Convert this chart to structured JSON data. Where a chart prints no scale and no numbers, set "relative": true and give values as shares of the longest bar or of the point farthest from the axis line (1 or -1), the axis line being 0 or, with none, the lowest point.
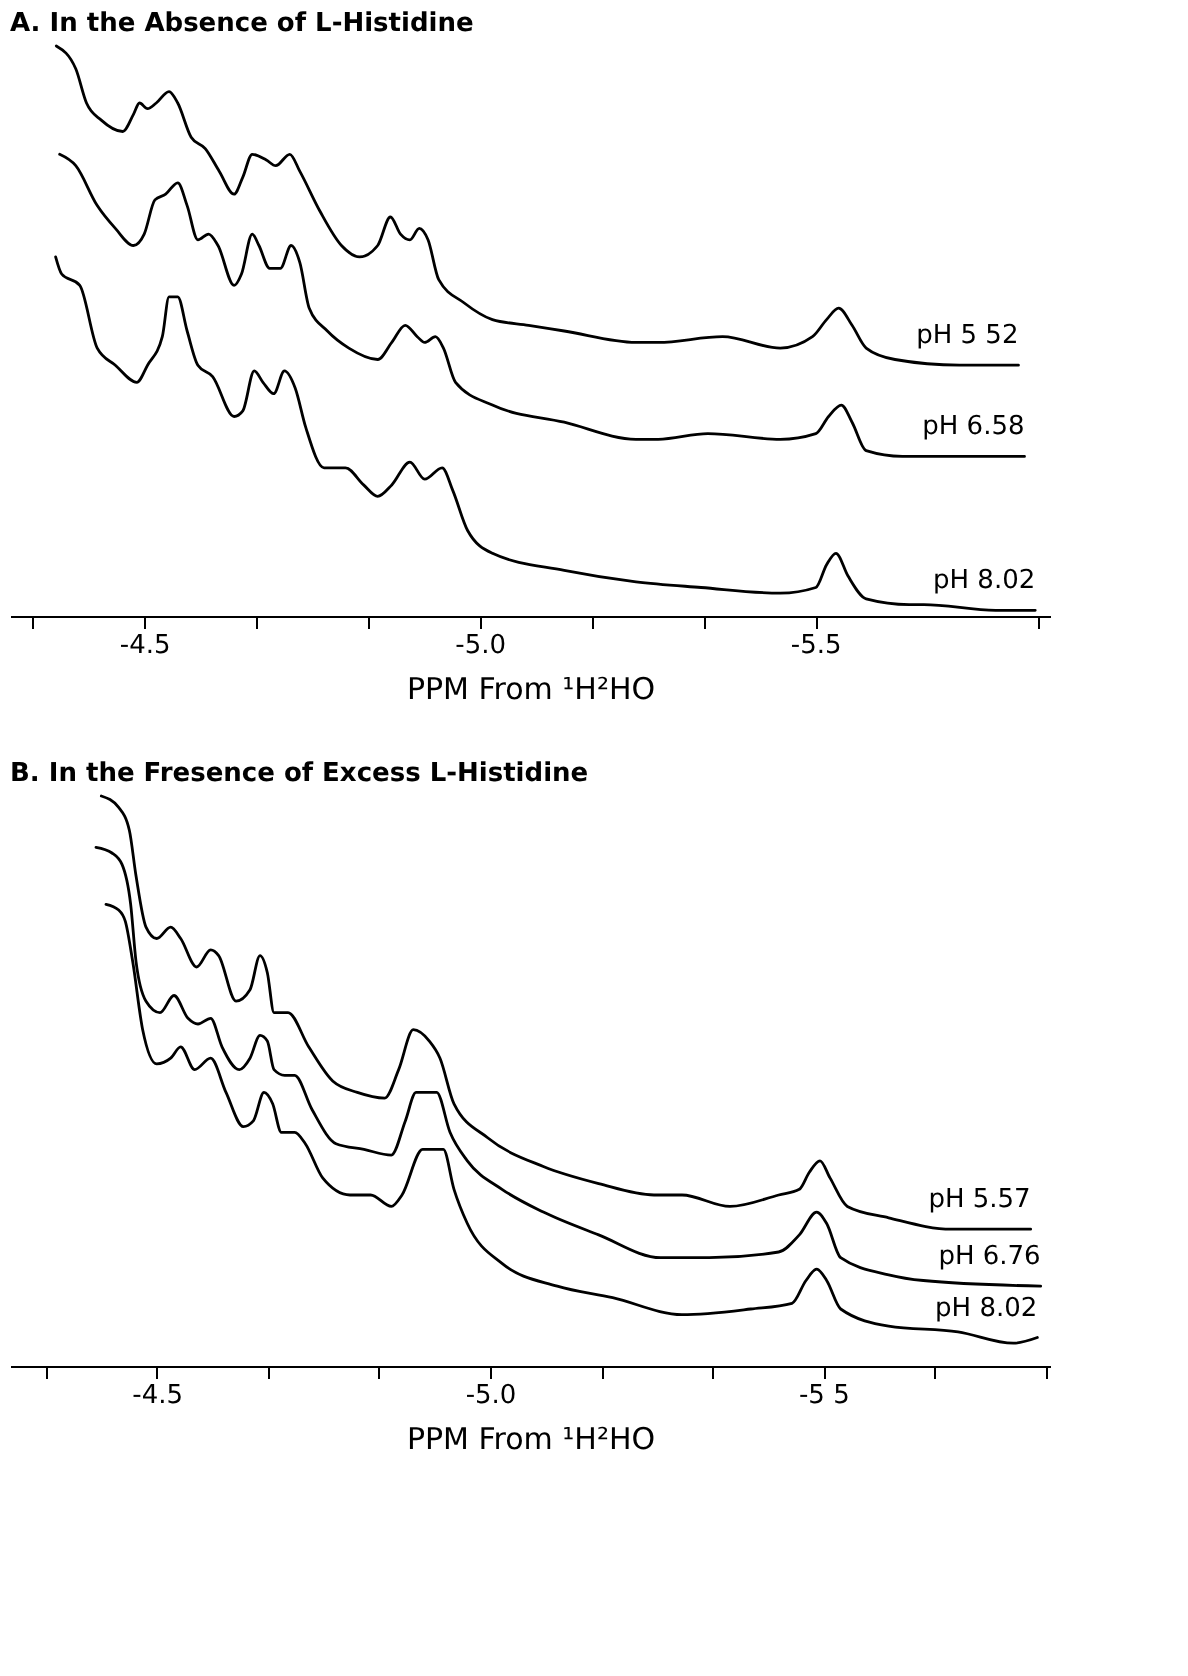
{
  "chart_data": [
    {
      "type": "line",
      "title": "A. In the Absence of L-Histidine",
      "xlabel": "PPM From ¹H²HO",
      "relative": true,
      "xlim": [
        -4.3,
        -5.85
      ],
      "xticks": [
        {
          "value": -4.333,
          "label": null
        },
        {
          "value": -4.5,
          "label": "-4.5"
        },
        {
          "value": -4.667,
          "label": null
        },
        {
          "value": -4.833,
          "label": null
        },
        {
          "value": -5.0,
          "label": "-5.0"
        },
        {
          "value": -5.167,
          "label": null
        },
        {
          "value": -5.333,
          "label": null
        },
        {
          "value": -5.5,
          "label": "-5.5"
        },
        {
          "value": -5.833,
          "label": null
        }
      ],
      "series": [
        {
          "name": "pH 5 52",
          "color": "#000000",
          "x": [
            -4.369,
            -4.398,
            -4.414,
            -4.436,
            -4.468,
            -4.484,
            -4.493,
            -4.505,
            -4.518,
            -4.537,
            -4.55,
            -4.57,
            -4.591,
            -4.612,
            -4.634,
            -4.647,
            -4.661,
            -4.682,
            -4.696,
            -4.717,
            -4.732,
            -4.762,
            -4.794,
            -4.821,
            -4.848,
            -4.867,
            -4.882,
            -4.896,
            -4.91,
            -4.923,
            -4.939,
            -4.976,
            -5.019,
            -5.073,
            -5.126,
            -5.233,
            -5.266,
            -5.362,
            -5.448,
            -5.496,
            -5.517,
            -5.535,
            -5.555,
            -5.576,
            -5.619,
            -5.715,
            -5.803
          ],
          "values": [
            1.0,
            0.96,
            0.9,
            0.87,
            0.85,
            0.88,
            0.9,
            0.89,
            0.9,
            0.92,
            0.9,
            0.84,
            0.82,
            0.78,
            0.74,
            0.77,
            0.81,
            0.8,
            0.79,
            0.81,
            0.78,
            0.71,
            0.65,
            0.63,
            0.65,
            0.7,
            0.67,
            0.66,
            0.68,
            0.66,
            0.59,
            0.55,
            0.52,
            0.51,
            0.5,
            0.48,
            0.48,
            0.49,
            0.47,
            0.49,
            0.52,
            0.54,
            0.51,
            0.47,
            0.45,
            0.44,
            0.44
          ]
        },
        {
          "name": "pH 6.58",
          "color": "#000000",
          "x": [
            -4.374,
            -4.398,
            -4.43,
            -4.457,
            -4.484,
            -4.5,
            -4.516,
            -4.532,
            -4.55,
            -4.564,
            -4.58,
            -4.596,
            -4.61,
            -4.634,
            -4.645,
            -4.661,
            -4.671,
            -4.687,
            -4.703,
            -4.719,
            -4.732,
            -4.746,
            -4.773,
            -4.805,
            -4.848,
            -4.869,
            -4.889,
            -4.907,
            -4.918,
            -4.934,
            -4.946,
            -4.964,
            -5.019,
            -5.126,
            -5.233,
            -5.266,
            -5.34,
            -5.448,
            -5.501,
            -5.52,
            -5.539,
            -5.555,
            -5.576,
            -5.63,
            -5.662,
            -5.812
          ],
          "values": [
            0.81,
            0.79,
            0.72,
            0.68,
            0.65,
            0.67,
            0.73,
            0.74,
            0.76,
            0.72,
            0.66,
            0.67,
            0.65,
            0.58,
            0.6,
            0.67,
            0.65,
            0.61,
            0.61,
            0.65,
            0.62,
            0.54,
            0.5,
            0.47,
            0.45,
            0.48,
            0.51,
            0.49,
            0.48,
            0.49,
            0.47,
            0.41,
            0.37,
            0.34,
            0.31,
            0.31,
            0.32,
            0.31,
            0.32,
            0.35,
            0.37,
            0.34,
            0.29,
            0.28,
            0.28,
            0.28
          ]
        },
        {
          "name": "pH 8.02",
          "color": "#000000",
          "x": [
            -4.368,
            -4.377,
            -4.404,
            -4.43,
            -4.457,
            -4.489,
            -4.505,
            -4.527,
            -4.537,
            -4.55,
            -4.564,
            -4.58,
            -4.602,
            -4.634,
            -4.647,
            -4.664,
            -4.677,
            -4.693,
            -4.709,
            -4.725,
            -4.741,
            -4.768,
            -4.8,
            -4.827,
            -4.848,
            -4.869,
            -4.896,
            -4.918,
            -4.944,
            -4.96,
            -4.982,
            -5.019,
            -5.126,
            -5.233,
            -5.33,
            -5.448,
            -5.501,
            -5.517,
            -5.531,
            -5.549,
            -5.576,
            -5.64,
            -5.662,
            -5.769,
            -5.828
          ],
          "values": [
            0.63,
            0.6,
            0.58,
            0.47,
            0.44,
            0.41,
            0.44,
            0.49,
            0.56,
            0.56,
            0.5,
            0.44,
            0.42,
            0.35,
            0.36,
            0.43,
            0.41,
            0.39,
            0.43,
            0.4,
            0.33,
            0.26,
            0.26,
            0.23,
            0.21,
            0.23,
            0.27,
            0.24,
            0.26,
            0.22,
            0.15,
            0.11,
            0.08,
            0.06,
            0.05,
            0.04,
            0.05,
            0.09,
            0.11,
            0.07,
            0.03,
            0.02,
            0.02,
            0.01,
            0.01
          ]
        }
      ]
    },
    {
      "type": "line",
      "title": "B. In the Fresence of Excess L-Histidine",
      "xlabel": "PPM From ¹H²HO",
      "relative": true,
      "xlim": [
        -4.28,
        -5.84
      ],
      "xticks": [
        {
          "value": -4.333,
          "label": null
        },
        {
          "value": -4.5,
          "label": "-4.5"
        },
        {
          "value": -4.667,
          "label": null
        },
        {
          "value": -4.833,
          "label": null
        },
        {
          "value": -5.0,
          "label": "-5.0"
        },
        {
          "value": -5.167,
          "label": null
        },
        {
          "value": -5.333,
          "label": null
        },
        {
          "value": -5.5,
          "label": "-5 5"
        },
        {
          "value": -5.667,
          "label": null
        },
        {
          "value": -5.833,
          "label": null
        }
      ],
      "series": [
        {
          "name": "pH 5.57",
          "color": "#000000",
          "x": [
            -4.417,
            -4.443,
            -4.459,
            -4.469,
            -4.484,
            -4.5,
            -4.521,
            -4.536,
            -4.56,
            -4.581,
            -4.593,
            -4.619,
            -4.64,
            -4.655,
            -4.666,
            -4.676,
            -4.697,
            -4.728,
            -4.764,
            -4.801,
            -4.842,
            -4.863,
            -4.885,
            -4.909,
            -4.925,
            -4.946,
            -4.997,
            -5.08,
            -5.163,
            -5.246,
            -5.288,
            -5.36,
            -5.433,
            -5.464,
            -5.479,
            -5.495,
            -5.51,
            -5.536,
            -5.598,
            -5.692,
            -5.811
          ],
          "values": [
            1.0,
            0.98,
            0.94,
            0.86,
            0.77,
            0.75,
            0.77,
            0.75,
            0.7,
            0.73,
            0.72,
            0.64,
            0.66,
            0.72,
            0.69,
            0.62,
            0.62,
            0.56,
            0.5,
            0.48,
            0.47,
            0.52,
            0.59,
            0.57,
            0.54,
            0.46,
            0.4,
            0.35,
            0.32,
            0.3,
            0.3,
            0.28,
            0.3,
            0.31,
            0.34,
            0.36,
            0.33,
            0.28,
            0.26,
            0.24,
            0.24
          ]
        },
        {
          "name": "pH 6.76",
          "color": "#000000",
          "x": [
            -4.409,
            -4.433,
            -4.448,
            -4.461,
            -4.469,
            -4.484,
            -4.505,
            -4.526,
            -4.547,
            -4.562,
            -4.581,
            -4.598,
            -4.624,
            -4.64,
            -4.655,
            -4.666,
            -4.676,
            -4.692,
            -4.707,
            -4.733,
            -4.769,
            -4.811,
            -4.852,
            -4.873,
            -4.889,
            -4.92,
            -4.94,
            -4.966,
            -5.018,
            -5.08,
            -5.163,
            -5.256,
            -5.329,
            -5.433,
            -5.464,
            -5.49,
            -5.505,
            -5.526,
            -5.598,
            -5.65,
            -5.826
          ],
          "values": [
            0.91,
            0.9,
            0.88,
            0.81,
            0.71,
            0.64,
            0.62,
            0.65,
            0.61,
            0.6,
            0.61,
            0.56,
            0.52,
            0.54,
            0.58,
            0.57,
            0.52,
            0.51,
            0.51,
            0.45,
            0.39,
            0.38,
            0.37,
            0.43,
            0.48,
            0.48,
            0.41,
            0.36,
            0.31,
            0.27,
            0.23,
            0.19,
            0.19,
            0.2,
            0.23,
            0.27,
            0.25,
            0.19,
            0.16,
            0.15,
            0.14
          ]
        },
        {
          "name": "pH 8.02",
          "color": "#000000",
          "x": [
            -4.424,
            -4.443,
            -4.453,
            -4.464,
            -4.479,
            -4.5,
            -4.521,
            -4.536,
            -4.557,
            -4.581,
            -4.604,
            -4.63,
            -4.645,
            -4.661,
            -4.674,
            -4.687,
            -4.707,
            -4.723,
            -4.749,
            -4.79,
            -4.821,
            -4.852,
            -4.868,
            -4.899,
            -4.93,
            -4.946,
            -4.966,
            -5.018,
            -5.101,
            -5.184,
            -5.288,
            -5.391,
            -5.453,
            -5.474,
            -5.49,
            -5.505,
            -5.526,
            -5.598,
            -5.702,
            -5.785,
            -5.821
          ],
          "values": [
            0.81,
            0.8,
            0.78,
            0.71,
            0.59,
            0.53,
            0.54,
            0.56,
            0.52,
            0.54,
            0.48,
            0.42,
            0.43,
            0.48,
            0.46,
            0.41,
            0.41,
            0.39,
            0.33,
            0.3,
            0.3,
            0.28,
            0.3,
            0.38,
            0.38,
            0.31,
            0.25,
            0.18,
            0.14,
            0.12,
            0.09,
            0.1,
            0.11,
            0.15,
            0.17,
            0.15,
            0.1,
            0.07,
            0.06,
            0.04,
            0.05
          ]
        }
      ]
    }
  ]
}
